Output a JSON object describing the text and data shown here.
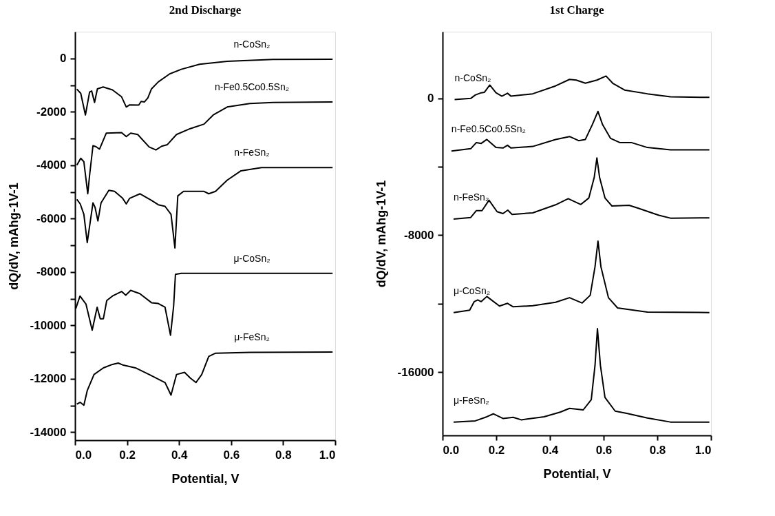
{
  "chart_data": [
    {
      "type": "line",
      "title": "2nd Discharge",
      "xlabel": "Potential, V",
      "ylabel": "dQ/dV, mAhg-1V-1",
      "xlim": [
        0,
        1
      ],
      "ylim": [
        -14300,
        1000
      ],
      "xticks": [
        {
          "value": 0,
          "label": "0.0"
        },
        {
          "value": 0.2,
          "label": "0.2"
        },
        {
          "value": 0.4,
          "label": "0.4"
        },
        {
          "value": 0.6,
          "label": "0.6"
        },
        {
          "value": 0.8,
          "label": "0.8"
        },
        {
          "value": 1,
          "label": "1.0"
        }
      ],
      "yticks": [
        0,
        {
          "value": -1000,
          "label": null
        },
        -2000,
        {
          "value": -3000,
          "label": null
        },
        -4000,
        {
          "value": -5000,
          "label": null
        },
        -6000,
        {
          "value": -7000,
          "label": null
        },
        -8000,
        {
          "value": -9000,
          "label": null
        },
        -10000,
        {
          "value": -11000,
          "label": null
        },
        -12000,
        {
          "value": -13000,
          "label": null
        },
        -14000
      ],
      "grid": false,
      "legend": false,
      "line_style": "solid",
      "marker": "none",
      "series": [
        {
          "name": "n-CoSn₂",
          "color": "#000000",
          "x": [
            0.007,
            0.022,
            0.04,
            0.056,
            0.064,
            0.075,
            0.086,
            0.108,
            0.144,
            0.179,
            0.197,
            0.21,
            0.245,
            0.254,
            0.267,
            0.28,
            0.294,
            0.32,
            0.364,
            0.408,
            0.479,
            0.585,
            0.761,
            0.99
          ],
          "values": [
            -1150,
            -1310,
            -2120,
            -1260,
            -1220,
            -1650,
            -1140,
            -1070,
            -1180,
            -1440,
            -1820,
            -1740,
            -1750,
            -1610,
            -1630,
            -1480,
            -1140,
            -880,
            -580,
            -410,
            -220,
            -110,
            -40,
            -30
          ]
        },
        {
          "name": "n-Fe0.5Co0.5Sn₂",
          "color": "#000000",
          "x": [
            0.007,
            0.022,
            0.034,
            0.049,
            0.056,
            0.069,
            0.081,
            0.094,
            0.12,
            0.179,
            0.197,
            0.214,
            0.241,
            0.285,
            0.311,
            0.333,
            0.355,
            0.39,
            0.443,
            0.496,
            0.531,
            0.585,
            0.672,
            0.761,
            0.99
          ],
          "values": [
            -4000,
            -3740,
            -3870,
            -5070,
            -4380,
            -3270,
            -3310,
            -3400,
            -2800,
            -2780,
            -2930,
            -2800,
            -2850,
            -3320,
            -3430,
            -3290,
            -3230,
            -2850,
            -2630,
            -2460,
            -2120,
            -1820,
            -1690,
            -1650,
            -1630
          ]
        },
        {
          "name": "n-FeSn₂",
          "color": "#000000",
          "x": [
            0.007,
            0.02,
            0.034,
            0.047,
            0.069,
            0.077,
            0.088,
            0.1,
            0.13,
            0.152,
            0.183,
            0.197,
            0.21,
            0.25,
            0.294,
            0.32,
            0.346,
            0.369,
            0.384,
            0.395,
            0.417,
            0.496,
            0.514,
            0.54,
            0.585,
            0.638,
            0.717,
            0.99
          ],
          "values": [
            -5280,
            -5450,
            -5840,
            -6900,
            -5410,
            -5580,
            -6090,
            -5410,
            -4940,
            -4980,
            -5240,
            -5450,
            -5240,
            -5070,
            -5320,
            -5480,
            -5540,
            -5840,
            -7100,
            -5150,
            -4980,
            -4980,
            -5070,
            -4980,
            -4560,
            -4210,
            -4090,
            -4090
          ]
        },
        {
          "name": "μ-CoSn₂",
          "color": "#000000",
          "x": [
            0.003,
            0.019,
            0.042,
            0.066,
            0.085,
            0.097,
            0.109,
            0.122,
            0.144,
            0.179,
            0.195,
            0.214,
            0.249,
            0.294,
            0.32,
            0.346,
            0.367,
            0.379,
            0.386,
            0.408,
            0.99
          ],
          "values": [
            -9370,
            -8900,
            -9200,
            -10180,
            -9320,
            -9750,
            -9750,
            -9070,
            -8900,
            -8730,
            -8870,
            -8690,
            -8810,
            -9150,
            -9180,
            -9320,
            -10370,
            -9280,
            -8090,
            -8050,
            -8050
          ]
        },
        {
          "name": "μ-FeSn₂",
          "color": "#000000",
          "x": [
            0.007,
            0.02,
            0.034,
            0.047,
            0.073,
            0.109,
            0.144,
            0.166,
            0.183,
            0.232,
            0.285,
            0.346,
            0.369,
            0.39,
            0.421,
            0.443,
            0.465,
            0.487,
            0.514,
            0.54,
            0.672,
            0.99
          ],
          "values": [
            -12950,
            -12880,
            -12990,
            -12440,
            -11840,
            -11590,
            -11460,
            -11410,
            -11480,
            -11590,
            -11840,
            -12140,
            -12610,
            -11840,
            -11760,
            -11970,
            -12140,
            -11840,
            -11160,
            -11040,
            -11010,
            -11000
          ]
        }
      ]
    },
    {
      "type": "line",
      "title": "1st Charge",
      "xlabel": "Potential, V",
      "ylabel": "dQ/dV, mAhg-1V-1",
      "xlim": [
        0,
        1
      ],
      "ylim": [
        -19700,
        3900
      ],
      "xticks": [
        {
          "value": 0,
          "label": "0.0"
        },
        {
          "value": 0.2,
          "label": "0.2"
        },
        {
          "value": 0.4,
          "label": "0.4"
        },
        {
          "value": 0.6,
          "label": "0.6"
        },
        {
          "value": 0.8,
          "label": "0.8"
        },
        {
          "value": 1,
          "label": "1.0"
        }
      ],
      "yticks": [
        0,
        {
          "value": -4000,
          "label": null
        },
        -8000,
        {
          "value": -12000,
          "label": null
        },
        -16000
      ],
      "grid": false,
      "legend": false,
      "line_style": "solid",
      "marker": "none",
      "series": [
        {
          "name": "n-CoSn₂",
          "color": "#000000",
          "x": [
            0.045,
            0.105,
            0.122,
            0.144,
            0.156,
            0.176,
            0.199,
            0.221,
            0.242,
            0.255,
            0.336,
            0.421,
            0.473,
            0.498,
            0.532,
            0.575,
            0.609,
            0.635,
            0.678,
            0.763,
            0.849,
            0.994
          ],
          "values": [
            -70,
            0,
            200,
            330,
            360,
            780,
            330,
            130,
            300,
            130,
            270,
            730,
            1110,
            1070,
            890,
            1070,
            1310,
            870,
            490,
            270,
            90,
            60
          ]
        },
        {
          "name": "n-Fe0.5Co0.5Sn₂",
          "color": "#000000",
          "x": [
            0.033,
            0.105,
            0.126,
            0.144,
            0.165,
            0.199,
            0.225,
            0.242,
            0.255,
            0.336,
            0.421,
            0.473,
            0.507,
            0.532,
            0.558,
            0.579,
            0.596,
            0.626,
            0.66,
            0.703,
            0.763,
            0.849,
            0.994
          ],
          "values": [
            -3080,
            -2940,
            -2580,
            -2630,
            -2400,
            -2870,
            -2900,
            -2740,
            -2900,
            -2810,
            -2400,
            -2230,
            -2470,
            -2400,
            -1530,
            -760,
            -1530,
            -2340,
            -2580,
            -2580,
            -2870,
            -3010,
            -3010
          ]
        },
        {
          "name": "n-FeSn₂",
          "color": "#000000",
          "x": [
            0.041,
            0.105,
            0.126,
            0.147,
            0.173,
            0.203,
            0.225,
            0.243,
            0.259,
            0.336,
            0.421,
            0.468,
            0.515,
            0.545,
            0.565,
            0.575,
            0.585,
            0.605,
            0.631,
            0.695,
            0.729,
            0.806,
            0.849,
            0.994
          ],
          "values": [
            -7050,
            -6960,
            -6560,
            -6560,
            -5950,
            -6620,
            -6730,
            -6530,
            -6780,
            -6690,
            -6220,
            -5860,
            -6200,
            -5820,
            -4620,
            -3480,
            -4620,
            -5820,
            -6290,
            -6250,
            -6420,
            -6830,
            -7000,
            -6980
          ]
        },
        {
          "name": "μ-CoSn₂",
          "color": "#000000",
          "x": [
            0.041,
            0.101,
            0.118,
            0.131,
            0.144,
            0.165,
            0.182,
            0.212,
            0.242,
            0.263,
            0.336,
            0.421,
            0.473,
            0.52,
            0.55,
            0.568,
            0.579,
            0.59,
            0.618,
            0.652,
            0.763,
            0.994
          ],
          "values": [
            -12520,
            -12380,
            -11880,
            -11780,
            -11880,
            -11580,
            -11780,
            -12140,
            -11980,
            -12180,
            -12120,
            -11920,
            -11650,
            -11960,
            -11510,
            -9840,
            -8340,
            -9840,
            -11650,
            -12250,
            -12490,
            -12520
          ]
        },
        {
          "name": "μ-FeSn₂",
          "color": "#000000",
          "x": [
            0.041,
            0.122,
            0.165,
            0.189,
            0.225,
            0.263,
            0.293,
            0.378,
            0.438,
            0.473,
            0.524,
            0.554,
            0.568,
            0.577,
            0.588,
            0.605,
            0.643,
            0.686,
            0.763,
            0.849,
            0.994
          ],
          "values": [
            -18920,
            -18850,
            -18610,
            -18440,
            -18710,
            -18640,
            -18790,
            -18610,
            -18340,
            -18120,
            -18210,
            -17610,
            -15600,
            -13460,
            -15600,
            -17480,
            -18280,
            -18410,
            -18680,
            -18920,
            -18920
          ]
        }
      ]
    }
  ]
}
